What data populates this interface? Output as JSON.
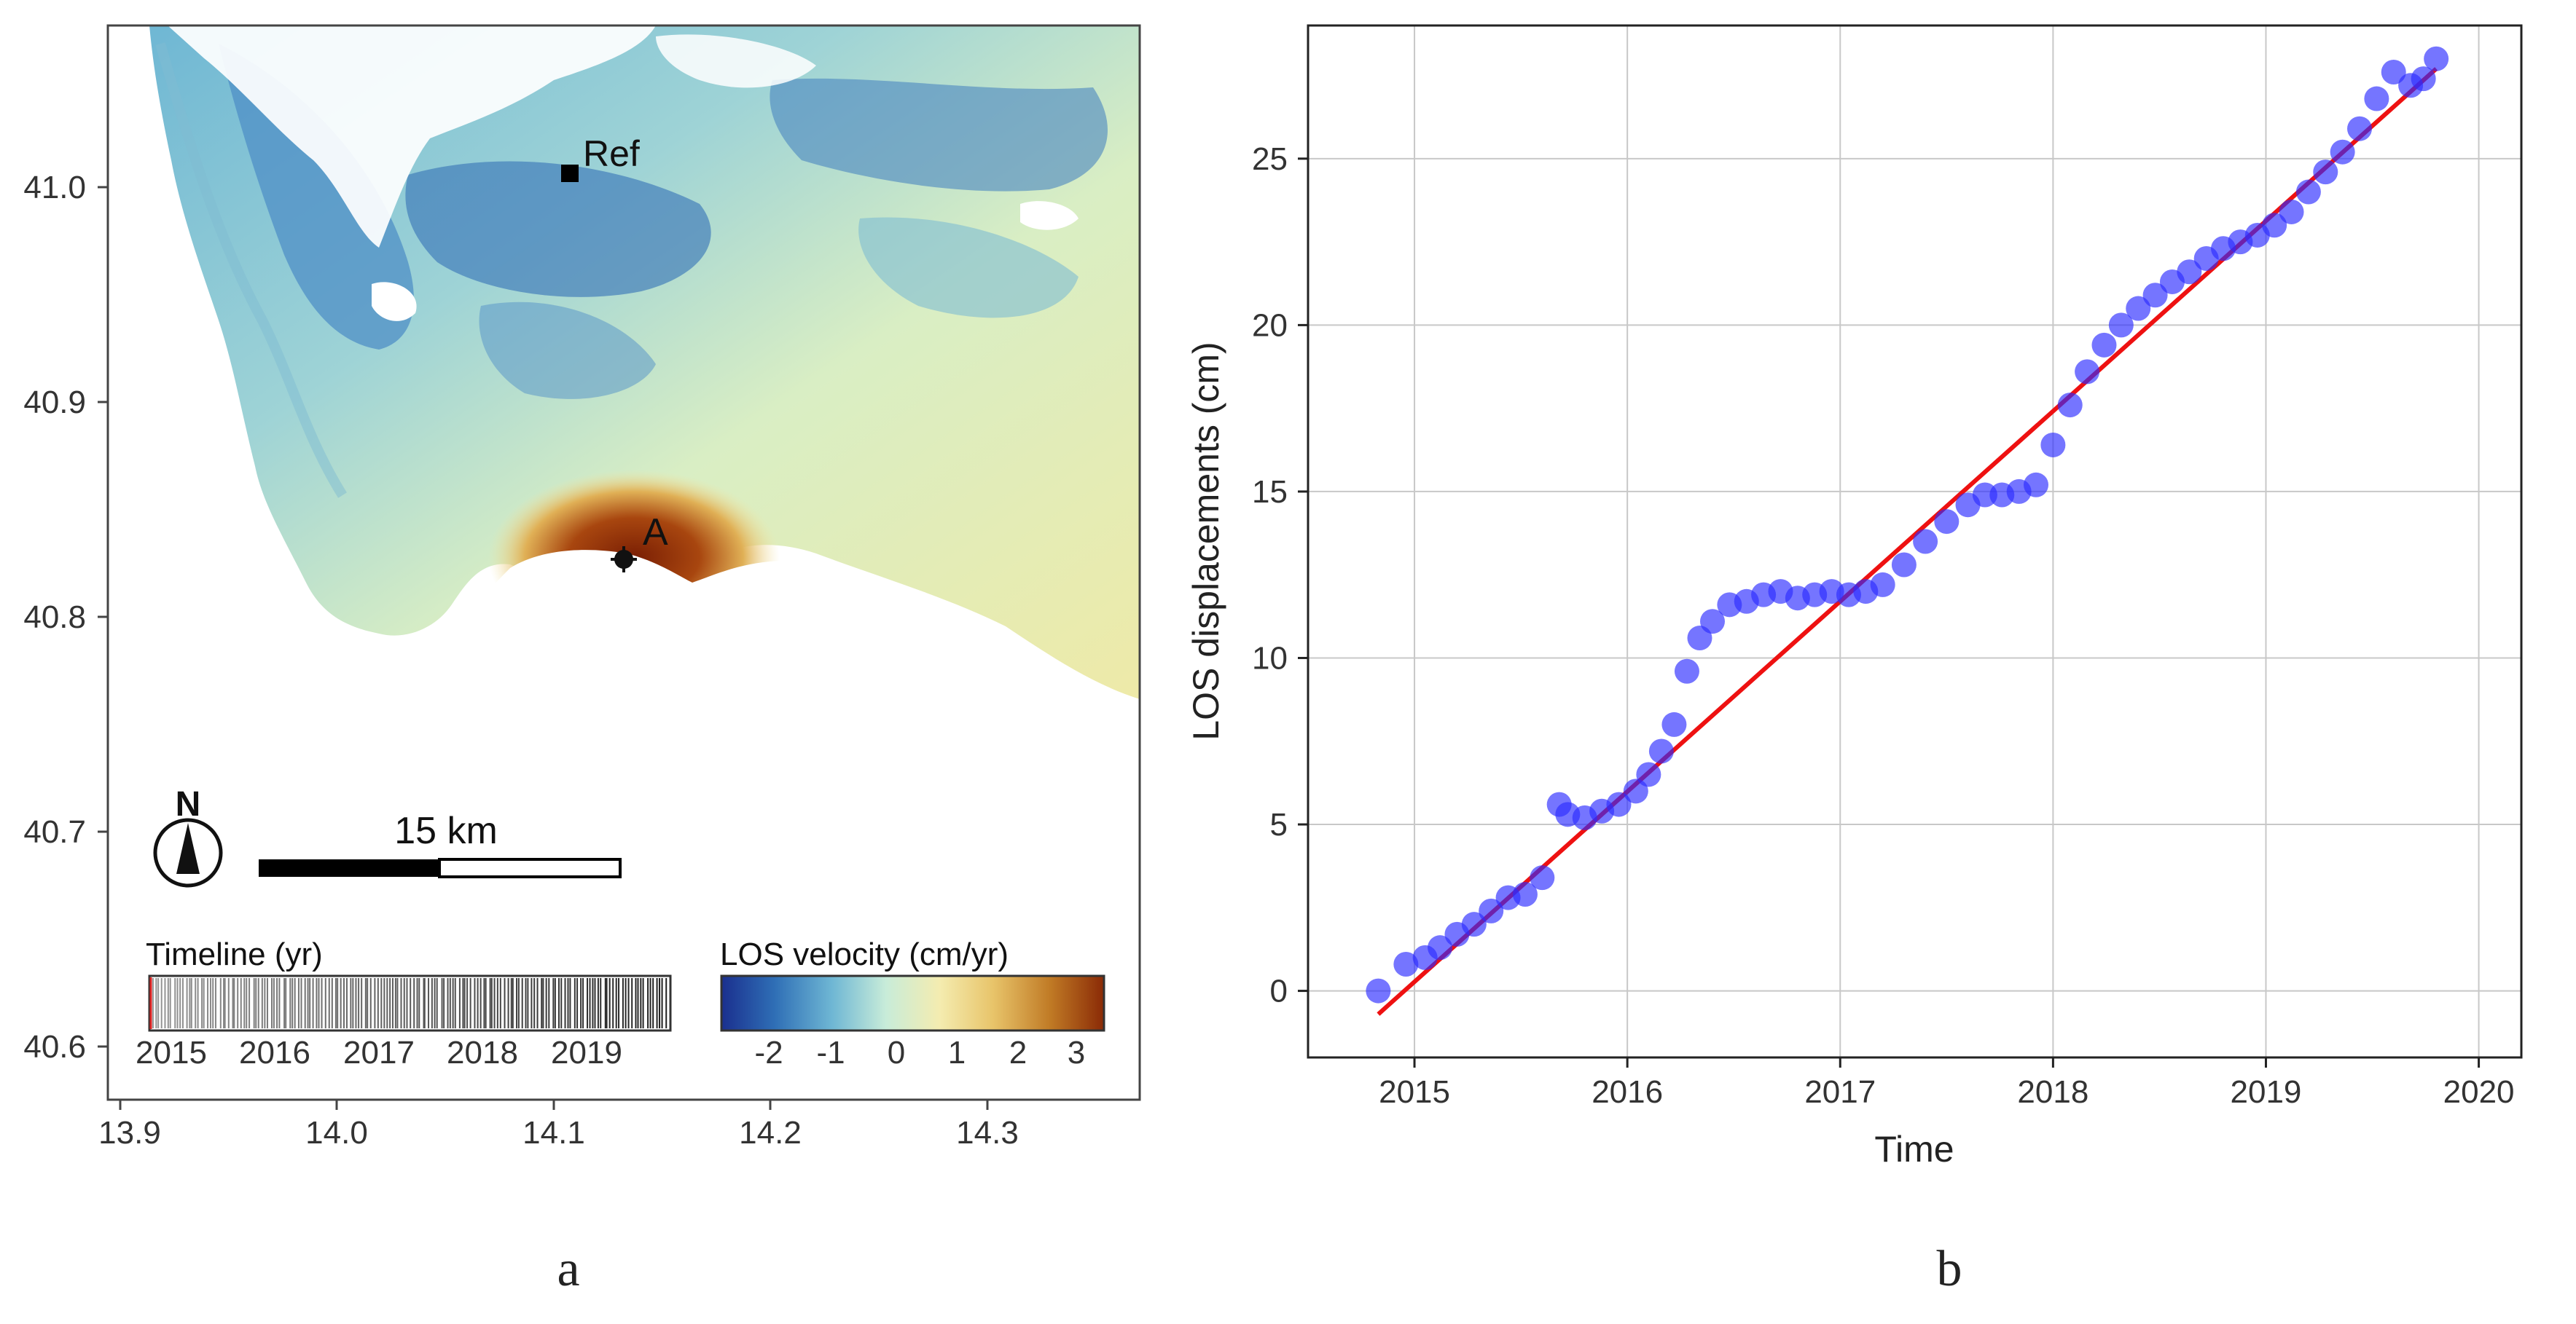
{
  "panels": {
    "a": {
      "label": "a",
      "x_ticks": [
        "13.9",
        "14.0",
        "14.1",
        "14.2",
        "14.3"
      ],
      "y_ticks": [
        "41.0",
        "40.9",
        "40.8",
        "40.7",
        "40.6"
      ],
      "ref_label": "Ref",
      "point_label": "A",
      "north_label": "N",
      "scale_label": "15 km",
      "timeline": {
        "title": "Timeline (yr)",
        "years": [
          "2015",
          "2016",
          "2017",
          "2018",
          "2019"
        ]
      },
      "colorbar": {
        "title": "LOS velocity (cm/yr)",
        "ticks": [
          "-2",
          "-1",
          "0",
          "1",
          "2",
          "3"
        ],
        "colors": [
          "#1a2f8e",
          "#2f6fb6",
          "#6fb7d4",
          "#c8ecd9",
          "#f4ecb0",
          "#e8c46a",
          "#c07a25",
          "#8a2a06"
        ]
      }
    },
    "b": {
      "label": "b"
    }
  },
  "chart_data": {
    "type": "scatter",
    "title": "",
    "xlabel": "Time",
    "ylabel": "LOS displacements (cm)",
    "xlim": [
      2014.5,
      2020.2
    ],
    "ylim": [
      -2,
      29
    ],
    "x_ticks": [
      2015,
      2016,
      2017,
      2018,
      2019,
      2020
    ],
    "y_ticks": [
      0,
      5,
      10,
      15,
      20,
      25
    ],
    "grid": true,
    "series": [
      {
        "name": "LOS displacement",
        "kind": "points",
        "color": "#2b2bff",
        "x": [
          2014.83,
          2014.96,
          2015.05,
          2015.12,
          2015.2,
          2015.28,
          2015.36,
          2015.44,
          2015.52,
          2015.6,
          2015.68,
          2015.72,
          2015.8,
          2015.88,
          2015.96,
          2016.04,
          2016.1,
          2016.16,
          2016.22,
          2016.28,
          2016.34,
          2016.4,
          2016.48,
          2016.56,
          2016.64,
          2016.72,
          2016.8,
          2016.88,
          2016.96,
          2017.04,
          2017.12,
          2017.2,
          2017.3,
          2017.4,
          2017.5,
          2017.6,
          2017.68,
          2017.76,
          2017.84,
          2017.92,
          2018.0,
          2018.08,
          2018.16,
          2018.24,
          2018.32,
          2018.4,
          2018.48,
          2018.56,
          2018.64,
          2018.72,
          2018.8,
          2018.88,
          2018.96,
          2019.04,
          2019.12,
          2019.2,
          2019.28,
          2019.36,
          2019.44,
          2019.52,
          2019.6,
          2019.68,
          2019.74,
          2019.8
        ],
        "y": [
          0.0,
          0.8,
          1.0,
          1.3,
          1.7,
          2.0,
          2.4,
          2.8,
          2.9,
          3.4,
          5.6,
          5.3,
          5.2,
          5.4,
          5.6,
          6.0,
          6.5,
          7.2,
          8.0,
          9.6,
          10.6,
          11.1,
          11.6,
          11.7,
          11.9,
          12.0,
          11.8,
          11.9,
          12.0,
          11.9,
          12.0,
          12.2,
          12.8,
          13.5,
          14.1,
          14.6,
          14.9,
          14.9,
          15.0,
          15.2,
          16.4,
          17.6,
          18.6,
          19.4,
          20.0,
          20.5,
          20.9,
          21.3,
          21.6,
          22.0,
          22.3,
          22.5,
          22.7,
          23.0,
          23.4,
          24.0,
          24.6,
          25.2,
          25.9,
          26.8,
          27.6,
          27.2,
          27.4,
          28.0
        ]
      },
      {
        "name": "Linear fit",
        "kind": "line",
        "color": "#ee1111",
        "x": [
          2014.83,
          2019.8
        ],
        "y": [
          -0.7,
          27.7
        ]
      }
    ]
  }
}
